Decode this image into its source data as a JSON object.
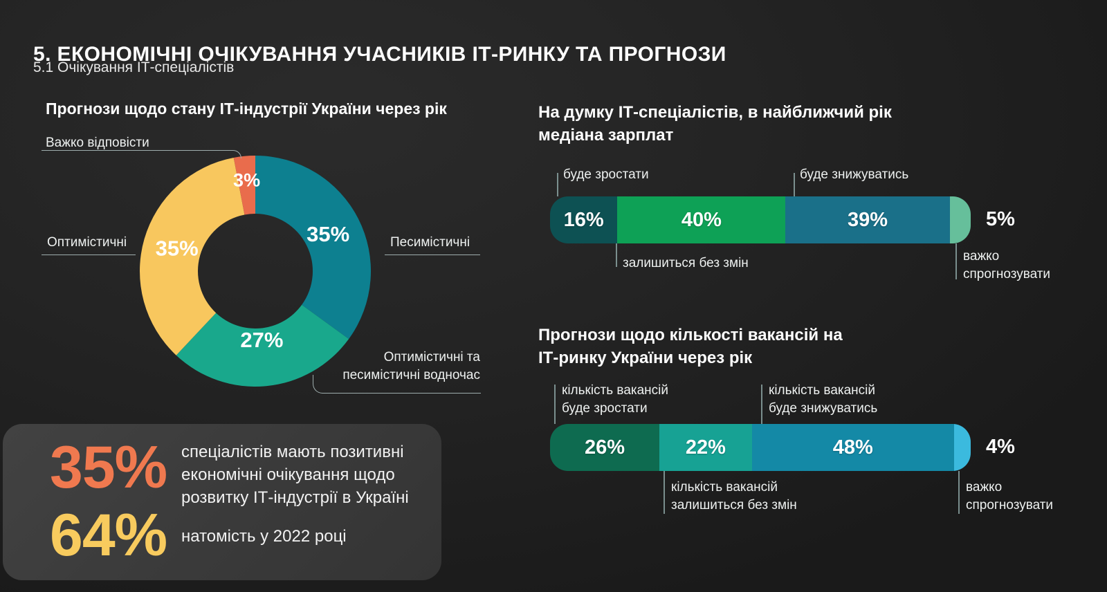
{
  "header": {
    "title": "5. ЕКОНОМІЧНІ ОЧІКУВАННЯ УЧАСНИКІВ ІТ-РИНКУ ТА ПРОГНОЗИ",
    "subtitle": "5.1 Очікування ІТ-спеціалістів"
  },
  "chart_data": [
    {
      "id": "industry-state-donut",
      "type": "pie",
      "style": "donut",
      "title": "Прогнози щодо стану ІТ-індустрії України через рік",
      "legend_position": "callouts-around-donut",
      "segments": [
        {
          "label": "Песимістичні",
          "value": 35,
          "display": "35%",
          "color": "#0d8090"
        },
        {
          "label": "Оптимістичні та песимістичні водночас",
          "value": 27,
          "display": "27%",
          "color": "#19a88c"
        },
        {
          "label": "Оптимістичні",
          "value": 35,
          "display": "35%",
          "color": "#f8c75e"
        },
        {
          "label": "Важко відповісти",
          "value": 3,
          "display": "3%",
          "color": "#e96c4c"
        }
      ],
      "callouts": {
        "difficult": "Важко відповісти",
        "optimistic": "Оптимістичні",
        "pessimistic": "Песимістичні",
        "mixed": "Оптимістичні та\nпесимістичні водночас"
      }
    },
    {
      "id": "salary-median-bar",
      "type": "bar",
      "variant": "stacked-horizontal",
      "title": "На думку ІТ-спеціалістів, в найближчий рік\nмедіана зарплат",
      "segments": [
        {
          "label": "буде зростати",
          "value": 16,
          "display": "16%",
          "color": "#0d5153"
        },
        {
          "label": "залишиться без змін",
          "value": 40,
          "display": "40%",
          "color": "#0ea156"
        },
        {
          "label": "буде знижуватись",
          "value": 39,
          "display": "39%",
          "color": "#1a7089"
        },
        {
          "label": "важко спрогнозувати",
          "value": 5,
          "display": "5%",
          "color": "#66bf9b",
          "value_outside": true
        }
      ],
      "callouts": {
        "grow": "буде зростати",
        "decline": "буде знижуватись",
        "same": "залишиться без змін",
        "hard": "важко\nспрогнозувати"
      }
    },
    {
      "id": "vacancies-forecast-bar",
      "type": "bar",
      "variant": "stacked-horizontal",
      "title": "Прогнози щодо кількості вакансій на\nІТ-ринку України через рік",
      "segments": [
        {
          "label": "кількість вакансій буде зростати",
          "value": 26,
          "display": "26%",
          "color": "#0e6b50"
        },
        {
          "label": "кількість вакансій залишиться без змін",
          "value": 22,
          "display": "22%",
          "color": "#17a294"
        },
        {
          "label": "кількість вакансій буде знижуватись",
          "value": 48,
          "display": "48%",
          "color": "#1489a6"
        },
        {
          "label": "важко спрогнозувати",
          "value": 4,
          "display": "4%",
          "color": "#3bbade",
          "value_outside": true
        }
      ],
      "callouts": {
        "grow": "кількість вакансій\nбуде зростати",
        "decline": "кількість вакансій\nбуде знижуватись",
        "same": "кількість вакансій\nзалишиться без змін",
        "hard": "важко\nспрогнозувати"
      }
    }
  ],
  "summary": {
    "stat1": {
      "value": "35%",
      "color": "#f0794f",
      "text": "спеціалістів мають позитивні\nекономічні очікування щодо\nрозвитку ІТ-індустрії в Україні"
    },
    "stat2": {
      "value": "64%",
      "color": "#f8cb5e",
      "text": "натомість у 2022 році"
    }
  },
  "colors": {
    "background": "#232323",
    "summary_panel": "#3b3b3b",
    "leader_line": "#9faeae",
    "text_primary": "#ffffff",
    "text_secondary": "#eef1f0"
  }
}
